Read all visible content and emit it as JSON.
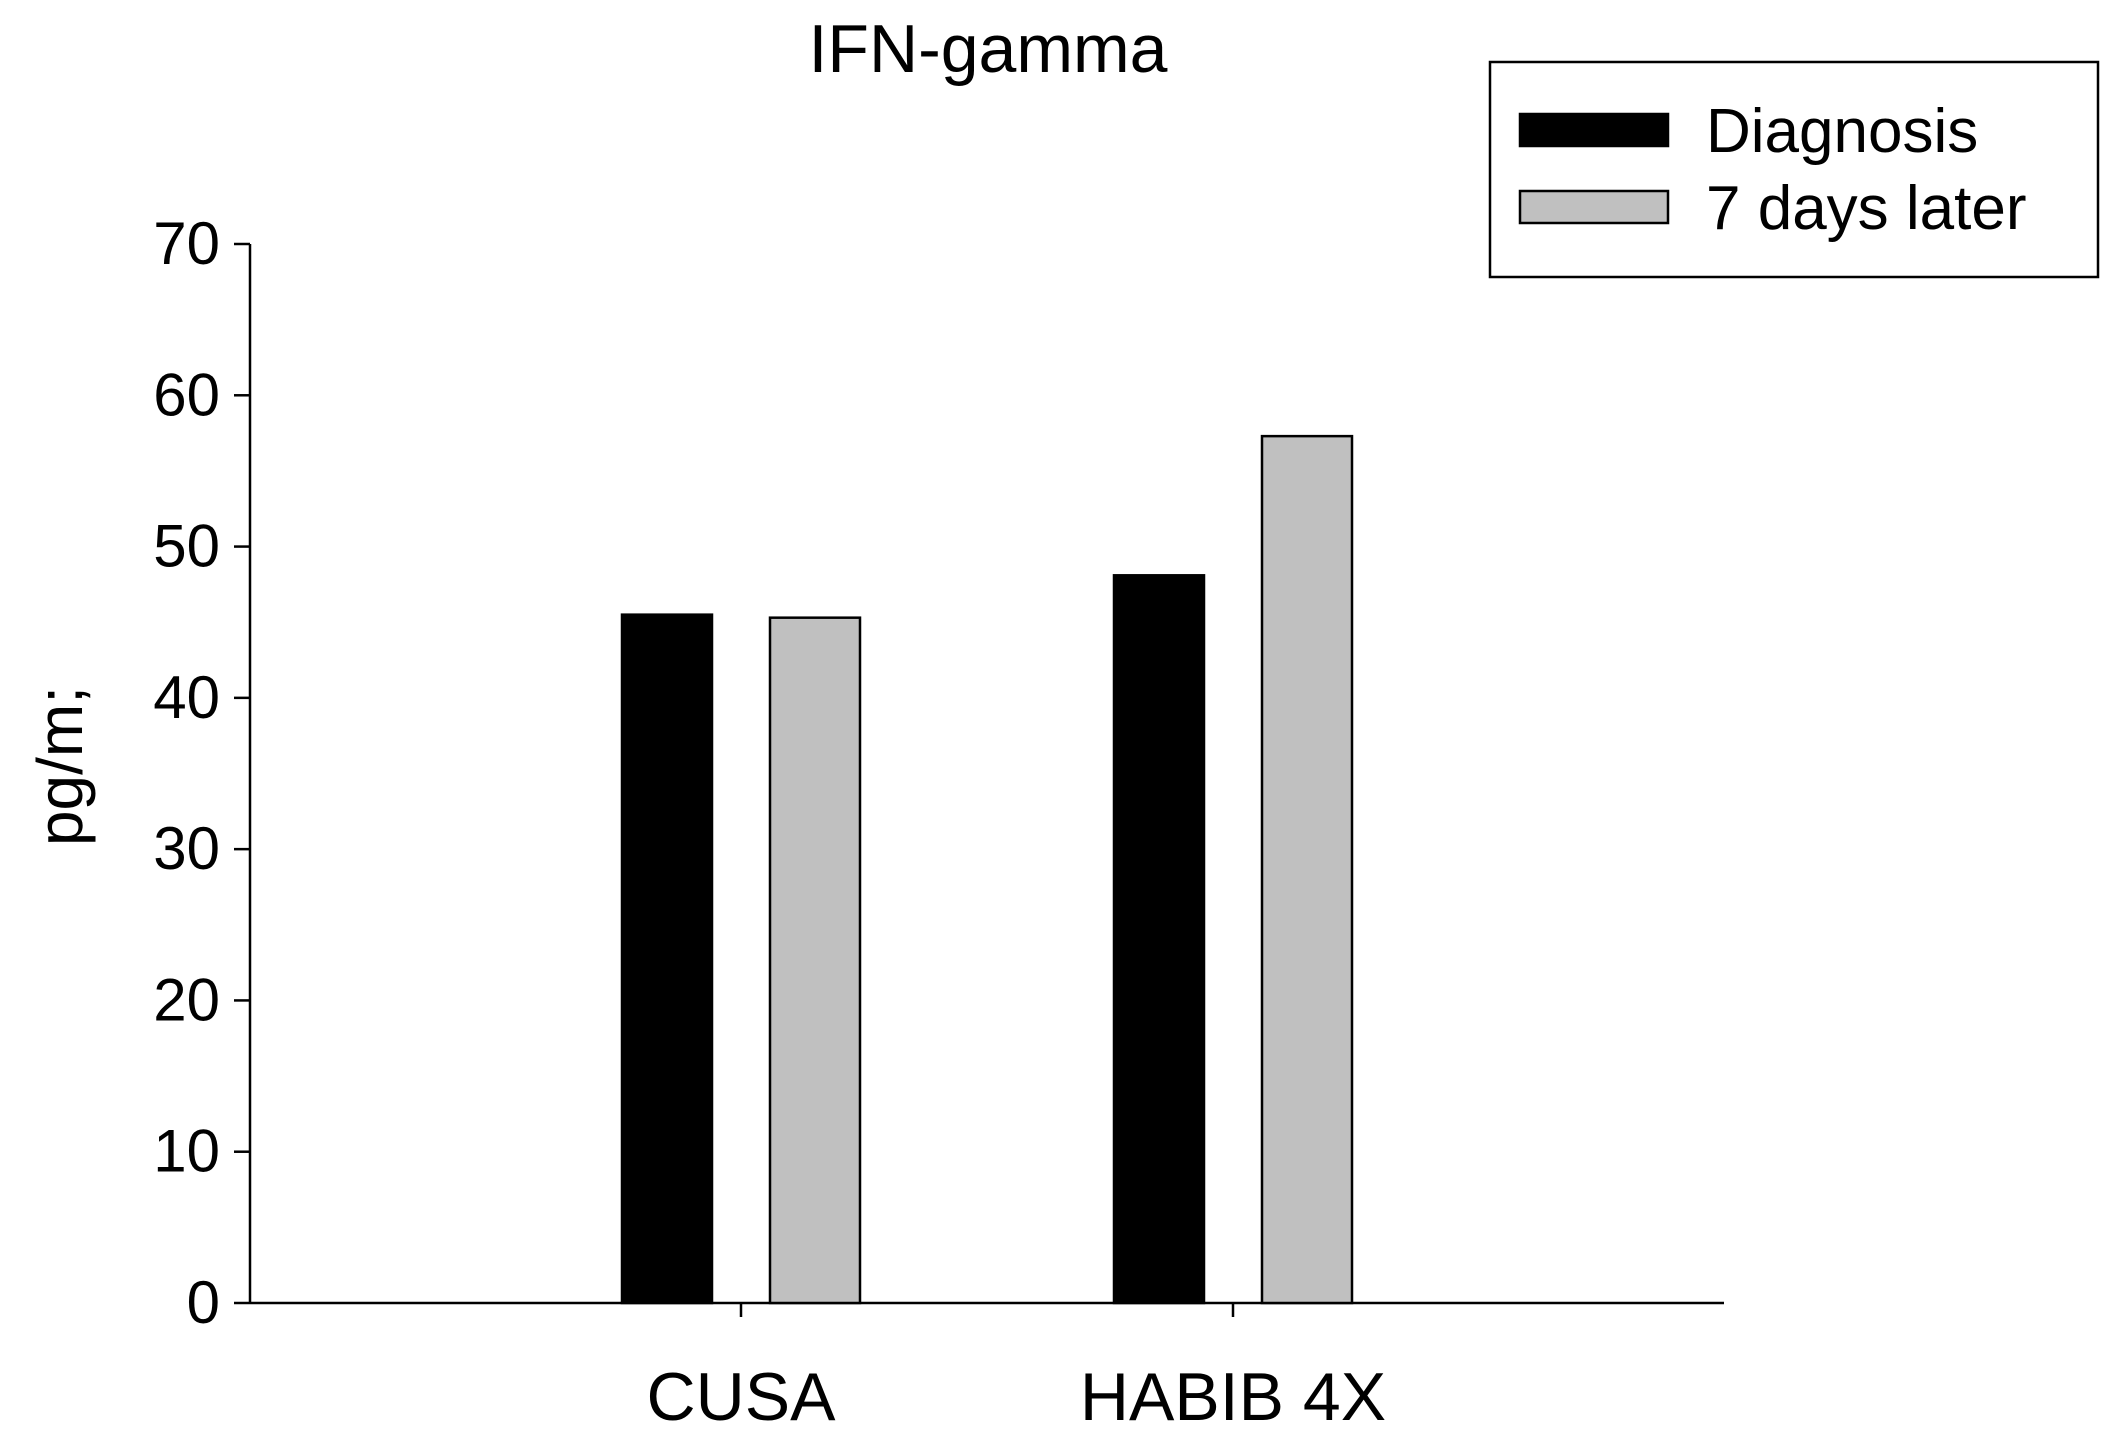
{
  "chart_data": {
    "type": "bar",
    "title": "IFN-gamma",
    "xlabel": "",
    "ylabel": "pg/m;",
    "categories": [
      "CUSA",
      "HABIB 4X"
    ],
    "series": [
      {
        "name": "Diagnosis",
        "values": [
          45.5,
          48.1
        ],
        "color": "#000000"
      },
      {
        "name": "7 days later",
        "values": [
          45.3,
          57.3
        ],
        "color": "#c0c0c0"
      }
    ],
    "ylim": [
      0,
      70
    ],
    "yticks": [
      "0",
      "10",
      "20",
      "30",
      "40",
      "50",
      "60",
      "70"
    ],
    "grid": false,
    "legend_position": "top-right"
  }
}
